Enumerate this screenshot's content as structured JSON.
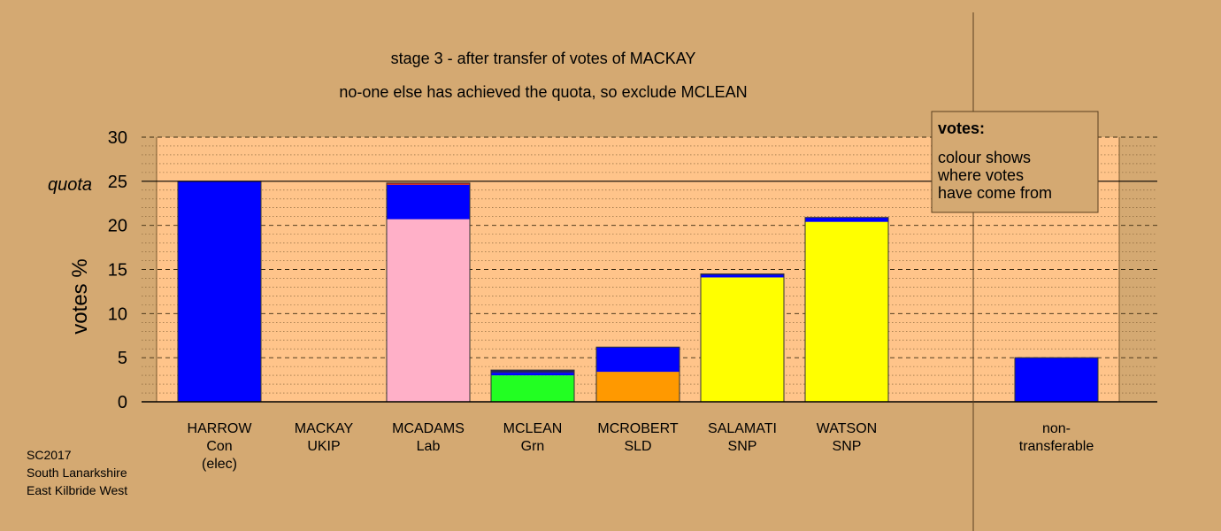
{
  "chart_data": {
    "type": "bar",
    "stacked": true,
    "title": "stage 3 - after transfer of votes of MACKAY",
    "subtitle": "no-one else has achieved the quota, so exclude MCLEAN",
    "ylabel": "votes %",
    "ylim": [
      0,
      30
    ],
    "yticks": [
      0,
      5,
      10,
      15,
      20,
      25,
      30
    ],
    "ytick_labels": [
      "0",
      "5",
      "10",
      "15",
      "20",
      "25",
      "30"
    ],
    "quota": 25,
    "quota_label": "quota",
    "grid": true,
    "categories": [
      {
        "name": "HARROW",
        "party": "Con",
        "note": "(elec)"
      },
      {
        "name": "MACKAY",
        "party": "UKIP",
        "note": ""
      },
      {
        "name": "MCADAMS",
        "party": "Lab",
        "note": ""
      },
      {
        "name": "MCLEAN",
        "party": "Grn",
        "note": ""
      },
      {
        "name": "MCROBERT",
        "party": "SLD",
        "note": ""
      },
      {
        "name": "SALAMATI",
        "party": "SNP",
        "note": ""
      },
      {
        "name": "WATSON",
        "party": "SNP",
        "note": ""
      },
      {
        "name": "non-",
        "party": "transferable",
        "note": ""
      }
    ],
    "bars": [
      {
        "segments": [
          {
            "value": 25.0,
            "color": "#0000ff"
          }
        ]
      },
      {
        "segments": []
      },
      {
        "segments": [
          {
            "value": 20.7,
            "color": "#ffb0c8"
          },
          {
            "value": 3.9,
            "color": "#0000ff"
          },
          {
            "value": 0.2,
            "color": "#cc2222"
          }
        ]
      },
      {
        "segments": [
          {
            "value": 3.0,
            "color": "#22ff22"
          },
          {
            "value": 0.3,
            "color": "#0000ff"
          },
          {
            "value": 0.3,
            "color": "#202060"
          }
        ]
      },
      {
        "segments": [
          {
            "value": 3.4,
            "color": "#ff9900"
          },
          {
            "value": 2.8,
            "color": "#0000ff"
          }
        ]
      },
      {
        "segments": [
          {
            "value": 14.1,
            "color": "#ffff00"
          },
          {
            "value": 0.3,
            "color": "#0000ff"
          },
          {
            "value": 0.1,
            "color": "#202060"
          }
        ]
      },
      {
        "segments": [
          {
            "value": 20.4,
            "color": "#ffff00"
          },
          {
            "value": 0.5,
            "color": "#0000ff"
          }
        ]
      },
      {
        "segments": [
          {
            "value": 5.0,
            "color": "#0000ff"
          }
        ]
      }
    ],
    "legend": {
      "heading": "votes:",
      "lines": [
        "colour shows",
        "where votes",
        "have come from"
      ]
    },
    "colors": {
      "background": "#d4a972",
      "plot_area": "#ffc48a",
      "gridline": "#7a5a30"
    }
  },
  "footer": {
    "lines": [
      "SC2017",
      "South Lanarkshire",
      "East Kilbride West"
    ]
  }
}
